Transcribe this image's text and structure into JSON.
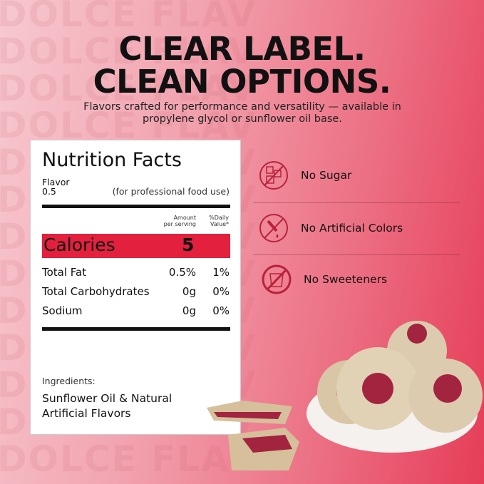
{
  "watermark": "DOLCE FLAV",
  "headline": [
    "CLEAR LABEL.",
    "CLEAN OPTIONS."
  ],
  "subtitle": "Flavors crafted for performance and versatility — available in propylene glycol or sunflower oil base.",
  "label": {
    "title": "Nutrition Facts",
    "flavor": "Flavor",
    "serving": "0.5",
    "use_note": "(for professional food use)",
    "amount_header": [
      "Amount",
      "per serving"
    ],
    "dv_header": [
      "%Daily",
      "Value*"
    ],
    "calories_label": "Calories",
    "calories_value": "5",
    "rows": [
      {
        "name": "Total Fat",
        "amount": "0.5%",
        "dv": "1%"
      },
      {
        "name": "Total Carbohydrates",
        "amount": "0g",
        "dv": "0%"
      },
      {
        "name": "Sodium",
        "amount": "0g",
        "dv": "0%"
      }
    ],
    "ingredients_label": "Ingredients:",
    "ingredients": [
      "Sunflower Oil & Natural",
      "Artificial Flavors"
    ]
  },
  "features": [
    {
      "icon": "no-sugar-icon",
      "label": "No Sugar"
    },
    {
      "icon": "no-artificial-colors-icon",
      "label": "No Artificial Colors"
    },
    {
      "icon": "no-sweeteners-icon",
      "label": "No Sweeteners"
    }
  ],
  "colors": {
    "accent": "#e3203e",
    "icon": "#b8223a"
  }
}
